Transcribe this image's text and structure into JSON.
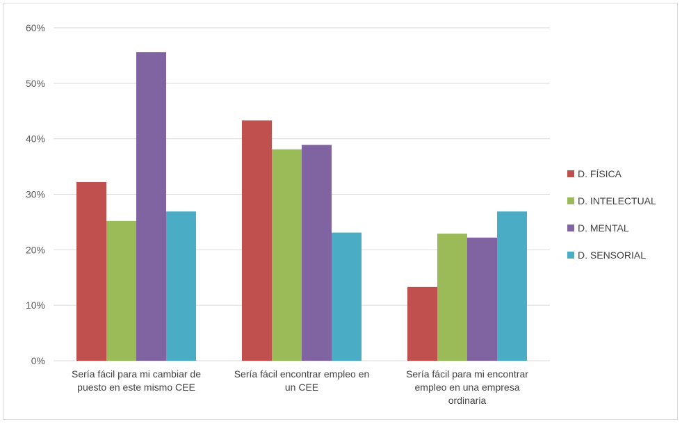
{
  "chart_data": {
    "type": "bar",
    "title": "",
    "xlabel": "",
    "ylabel": "",
    "ylim": [
      0,
      0.6
    ],
    "y_ticks": [
      0,
      0.1,
      0.2,
      0.3,
      0.4,
      0.5,
      0.6
    ],
    "y_tick_labels": [
      "0%",
      "10%",
      "20%",
      "30%",
      "40%",
      "50%",
      "60%"
    ],
    "grid": true,
    "legend_position": "right",
    "categories": [
      [
        "Sería fácil para mi cambiar de",
        "puesto en este mismo CEE"
      ],
      [
        "Sería fácil encontrar empleo en",
        "un CEE"
      ],
      [
        "Sería fácil para mi encontrar",
        "empleo en una empresa",
        "ordinaria"
      ]
    ],
    "series": [
      {
        "name": "D. FÍSICA",
        "color": "#c0504d",
        "values": [
          0.322,
          0.433,
          0.133
        ]
      },
      {
        "name": "D. INTELECTUAL",
        "color": "#9bbb59",
        "values": [
          0.252,
          0.381,
          0.229
        ]
      },
      {
        "name": "D. MENTAL",
        "color": "#8064a2",
        "values": [
          0.556,
          0.389,
          0.222
        ]
      },
      {
        "name": "D. SENSORIAL",
        "color": "#4bacc6",
        "values": [
          0.269,
          0.231,
          0.269
        ]
      }
    ]
  }
}
